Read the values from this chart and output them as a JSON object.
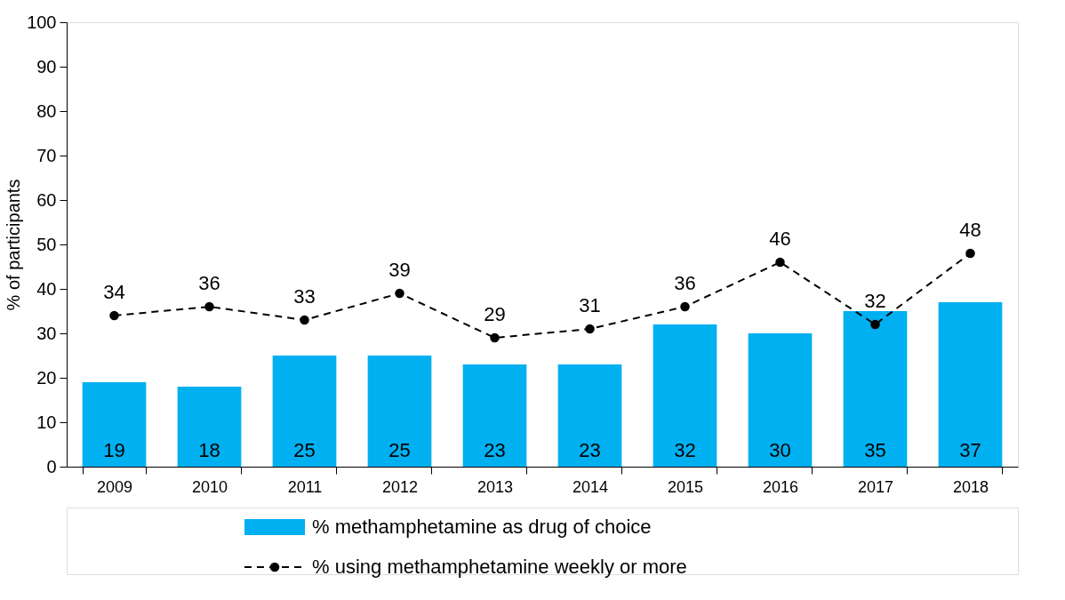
{
  "chart_data": {
    "type": "bar",
    "ylabel": "% of participants",
    "categories": [
      "2009",
      "2010",
      "2011",
      "2012",
      "2013",
      "2014",
      "2015",
      "2016",
      "2017",
      "2018"
    ],
    "series": [
      {
        "name": "% methamphetamine as drug of choice",
        "color": "#00b0f0",
        "values": [
          19,
          18,
          25,
          25,
          23,
          23,
          32,
          30,
          35,
          37
        ]
      },
      {
        "name": "% using methamphetamine weekly or more",
        "type": "line",
        "color": "#000000",
        "marker": "circle",
        "line_style": "dashed",
        "values": [
          34,
          36,
          33,
          39,
          29,
          31,
          36,
          46,
          32,
          48
        ]
      }
    ],
    "ylim": [
      0,
      100
    ],
    "yticks": [
      0,
      10,
      20,
      30,
      40,
      50,
      60,
      70,
      80,
      90,
      100
    ],
    "data_labels": true,
    "grid": false,
    "legend": "bottom"
  }
}
